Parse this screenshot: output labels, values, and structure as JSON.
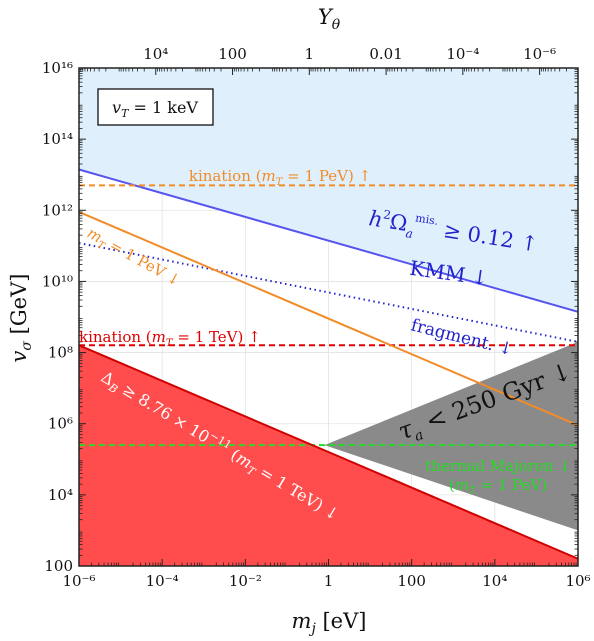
{
  "chart_data": {
    "type": "area",
    "xlabel": "m_j [eV]",
    "ylabel": "v_σ [GeV]",
    "top_xlabel": "Y_θ",
    "x_scale": "log",
    "y_scale": "log",
    "xlim": [
      1e-06,
      1000000.0
    ],
    "ylim": [
      100,
      1e+16
    ],
    "top_axis_range": [
      1000000.0,
      1e-07
    ],
    "x_ticks": [
      {
        "value": 1e-06,
        "label": "10⁻⁶"
      },
      {
        "value": 0.0001,
        "label": "10⁻⁴"
      },
      {
        "value": 0.01,
        "label": "10⁻²"
      },
      {
        "value": 1,
        "label": "1"
      },
      {
        "value": 100,
        "label": "100"
      },
      {
        "value": 10000.0,
        "label": "10⁴"
      },
      {
        "value": 1000000.0,
        "label": "10⁶"
      }
    ],
    "y_ticks": [
      {
        "value": 100,
        "label": "100"
      },
      {
        "value": 10000.0,
        "label": "10⁴"
      },
      {
        "value": 1000000.0,
        "label": "10⁶"
      },
      {
        "value": 100000000.0,
        "label": "10⁸"
      },
      {
        "value": 10000000000.0,
        "label": "10¹⁰"
      },
      {
        "value": 1000000000000.0,
        "label": "10¹²"
      },
      {
        "value": 100000000000000.0,
        "label": "10¹⁴"
      },
      {
        "value": 1e+16,
        "label": "10¹⁶"
      }
    ],
    "top_ticks": [
      {
        "value": 10000.0,
        "label": "10⁴"
      },
      {
        "value": 100,
        "label": "100"
      },
      {
        "value": 1,
        "label": "1"
      },
      {
        "value": 0.01,
        "label": "0.01"
      },
      {
        "value": 0.0001,
        "label": "10⁻⁴"
      },
      {
        "value": 1e-06,
        "label": "10⁻⁶"
      }
    ],
    "grid": true,
    "regions": [
      {
        "name": "misalignment",
        "color": "#dff0fc",
        "x": [
          1e-06,
          1000000.0
        ],
        "y_lower": [
          14000000000000.0,
          1400000000.0
        ],
        "y_upper": [
          1e+16,
          1e+16
        ]
      },
      {
        "name": "leptogenesis",
        "color": "#ff4d4d",
        "x": [
          1e-06,
          1000000.0
        ],
        "y_lower": [
          100,
          100
        ],
        "y_upper": [
          160000000.0,
          160
        ]
      },
      {
        "name": "lifetime",
        "color": "#8a8a8a",
        "points": [
          [
            0.8,
            250000.0
          ],
          [
            1000000.0,
            1000.0
          ],
          [
            1000000.0,
            200000000.0
          ]
        ]
      }
    ],
    "lines": [
      {
        "name": "misalignment",
        "color": "#5555ee",
        "style": "solid",
        "x": [
          1e-06,
          1000000.0
        ],
        "y": [
          14000000000000.0,
          1400000000.0
        ]
      },
      {
        "name": "fragment",
        "color": "#2222cc",
        "style": "dotted",
        "x": [
          1e-06,
          1000000.0
        ],
        "y": [
          120000000000.0,
          200000000.0
        ]
      },
      {
        "name": "kination_PeV",
        "color": "#f28c28",
        "style": "dashed",
        "x": [
          1e-06,
          1000000.0
        ],
        "y": [
          5000000000000.0,
          5000000000000.0
        ]
      },
      {
        "name": "kination_TeV",
        "color": "#e00000",
        "style": "dashed",
        "x": [
          1e-06,
          1000000.0
        ],
        "y": [
          160000000.0,
          160000000.0
        ]
      },
      {
        "name": "mT_1PeV_orange",
        "color": "#f28c28",
        "style": "solid",
        "x": [
          1e-06,
          1000000.0
        ],
        "y": [
          900000000000.0,
          900000.0
        ]
      },
      {
        "name": "thermal_majoron",
        "color": "#22dd22",
        "style": "dashed",
        "x": [
          1e-06,
          1000000.0
        ],
        "y": [
          250000.0,
          250000.0
        ]
      },
      {
        "name": "leptogenesis_edge",
        "color": "#d00000",
        "style": "solid",
        "x": [
          1e-06,
          1000000.0
        ],
        "y": [
          160000000.0,
          160
        ]
      }
    ],
    "annotations": {
      "box": "v_T = 1 keV",
      "kination_pev": "kination (m_T = 1 PeV) ↑",
      "mis": "h²Ω_a^mis. ≥ 0.12 ↑",
      "kmm": "KMM ↓",
      "mt_pev": "m_T = 1 PeV ↓",
      "fragment": "fragment. ↓",
      "kination_tev": "kination (m_T = 1 TeV) ↑",
      "tau": "τ_a < 250 Gyr ↓",
      "delta": "Δ_B ≥ 8.76 × 10⁻¹¹ (m_T = 1 TeV) ↓",
      "thermal1": "thermal Majoron ↓",
      "thermal2": "(m_T = 1 PeV)"
    }
  }
}
